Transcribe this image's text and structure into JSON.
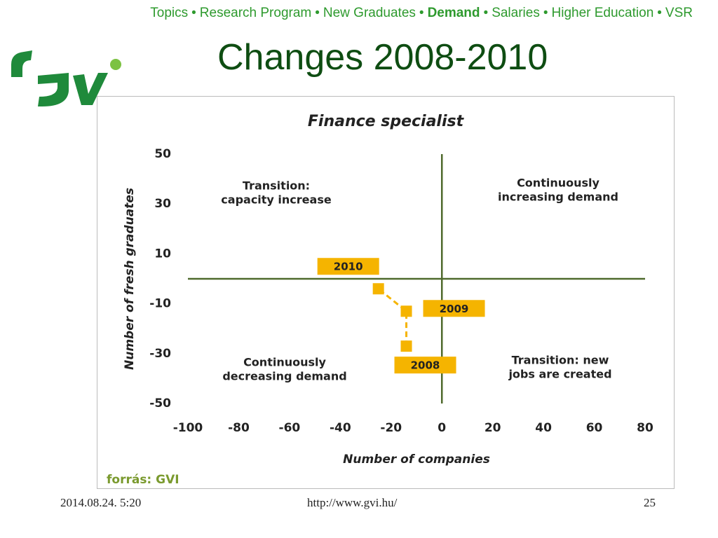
{
  "nav": {
    "items": [
      "Topics",
      "Research Program",
      "New Graduates",
      "Demand",
      "Salaries",
      "Higher Education",
      "VSR"
    ]
  },
  "slide_title": "Changes 2008-2010",
  "chart_data": {
    "type": "line",
    "title": "Finance specialist",
    "x_label": "Number of companies",
    "y_label": "Number of fresh graduates",
    "xlim": [
      -100,
      80
    ],
    "ylim": [
      -50,
      50
    ],
    "xticks": [
      -100,
      -80,
      -60,
      -40,
      -20,
      0,
      20,
      40,
      60,
      80
    ],
    "yticks": [
      50,
      30,
      10,
      -10,
      -30,
      -50
    ],
    "series": [
      {
        "color": "#f5b400",
        "x": [
          -14,
          -14,
          -25
        ],
        "values": [
          -27,
          -13,
          -4
        ],
        "point_labels": [
          "2008",
          "2009",
          "2010"
        ]
      }
    ],
    "annotations": [
      {
        "lines": [
          "Transition:",
          "capacity increase"
        ]
      },
      {
        "lines": [
          "Continuously",
          "increasing demand"
        ]
      },
      {
        "lines": [
          "Continuously",
          "decreasing demand"
        ]
      },
      {
        "lines": [
          "Transition: new",
          "jobs are created"
        ]
      }
    ],
    "source": "forrás: GVI"
  },
  "footer": {
    "date": "2014.08.24. 5:20",
    "url": "http://www.gvi.hu/",
    "page": "25"
  }
}
